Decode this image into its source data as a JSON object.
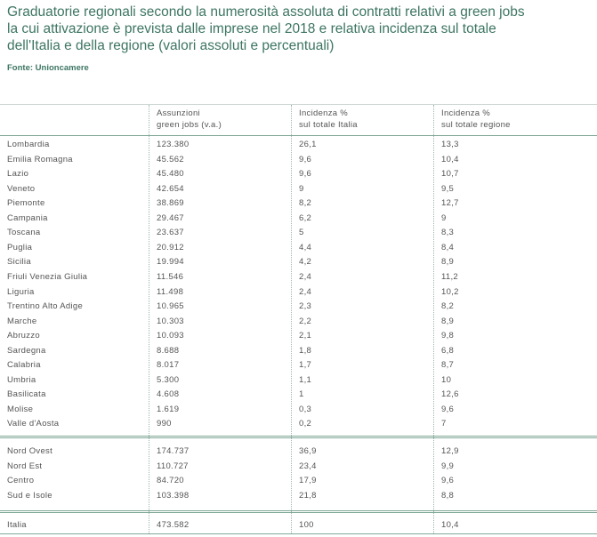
{
  "header": {
    "title": [
      "Graduatorie regionali secondo la numerosità assoluta di contratti relativi a green jobs",
      "la cui attivazione è prevista dalle imprese nel 2018 e relativa incidenza sul totale",
      "dell'Italia e della regione (valori assoluti e percentuali)"
    ],
    "source": "Fonte: Unioncamere"
  },
  "table": {
    "columns": [
      [
        "Assunzioni",
        "green jobs (v.a.)"
      ],
      [
        "Incidenza %",
        "sul totale Italia"
      ],
      [
        "Incidenza %",
        "sul totale regione"
      ]
    ],
    "rows": [
      [
        "Lombardia",
        "123.380",
        "26,1",
        "13,3"
      ],
      [
        "Emilia Romagna",
        "45.562",
        "9,6",
        "10,4"
      ],
      [
        "Lazio",
        "45.480",
        "9,6",
        "10,7"
      ],
      [
        "Veneto",
        "42.654",
        "9",
        "9,5"
      ],
      [
        "Piemonte",
        "38.869",
        "8,2",
        "12,7"
      ],
      [
        "Campania",
        "29.467",
        "6,2",
        "9"
      ],
      [
        "Toscana",
        "23.637",
        "5",
        "8,3"
      ],
      [
        "Puglia",
        "20.912",
        "4,4",
        "8,4"
      ],
      [
        "Sicilia",
        "19.994",
        "4,2",
        "8,9"
      ],
      [
        "Friuli Venezia Giulia",
        "11.546",
        "2,4",
        "11,2"
      ],
      [
        "Liguria",
        "11.498",
        "2,4",
        "10,2"
      ],
      [
        "Trentino Alto Adige",
        "10.965",
        "2,3",
        "8,2"
      ],
      [
        "Marche",
        "10.303",
        "2,2",
        "8,9"
      ],
      [
        "Abruzzo",
        "10.093",
        "2,1",
        "9,8"
      ],
      [
        "Sardegna",
        "8.688",
        "1,8",
        "6,8"
      ],
      [
        "Calabria",
        "8.017",
        "1,7",
        "8,7"
      ],
      [
        "Umbria",
        "5.300",
        "1,1",
        "10"
      ],
      [
        "Basilicata",
        "4.608",
        "1",
        "12,6"
      ],
      [
        "Molise",
        "1.619",
        "0,3",
        "9,6"
      ],
      [
        "Valle d'Aosta",
        "990",
        "0,2",
        "7"
      ]
    ],
    "areas": [
      [
        "Nord Ovest",
        "174.737",
        "36,9",
        "12,9"
      ],
      [
        "Nord Est",
        "110.727",
        "23,4",
        "9,9"
      ],
      [
        "Centro",
        "84.720",
        "17,9",
        "9,6"
      ],
      [
        "Sud e Isole",
        "103.398",
        "21,8",
        "8,8"
      ]
    ],
    "total": [
      "Italia",
      "473.582",
      "100",
      "10,4"
    ]
  }
}
